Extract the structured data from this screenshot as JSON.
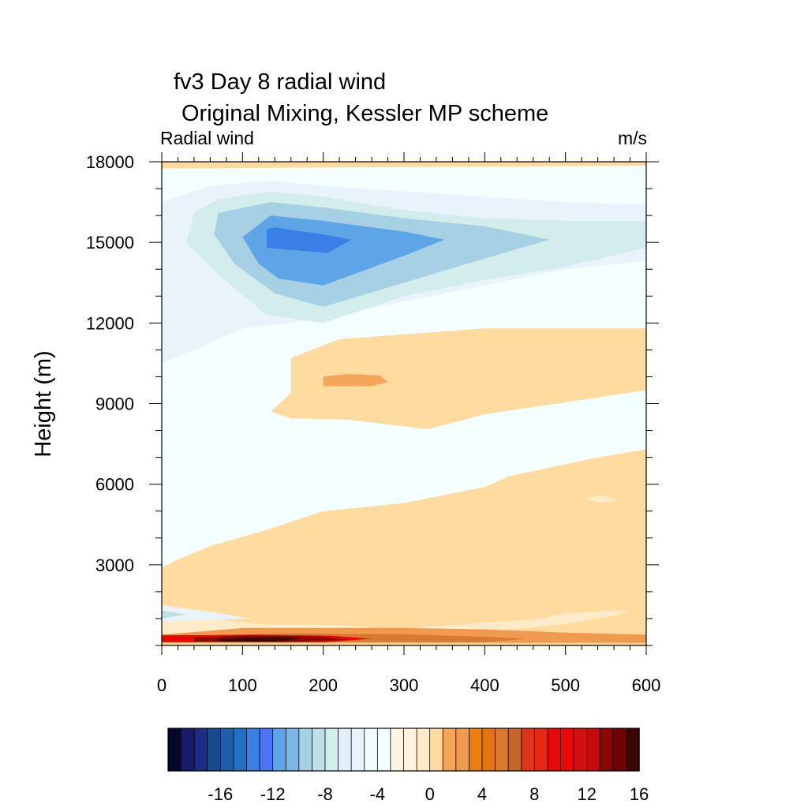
{
  "chart_data": {
    "type": "heatmap",
    "title": "fv3 Day 8 radial wind",
    "subtitle": "Original Mixing,  Kessler MP scheme",
    "left_label": "Radial wind",
    "right_label": "m/s",
    "ylabel": "Height (m)",
    "xlabel": "",
    "xlim": [
      0,
      600
    ],
    "ylim": [
      0,
      18000
    ],
    "x_ticks": [
      0,
      100,
      200,
      300,
      400,
      500,
      600
    ],
    "y_ticks": [
      3000,
      6000,
      9000,
      12000,
      15000,
      18000
    ],
    "colorbar": {
      "ticks": [
        -16,
        -12,
        -8,
        -4,
        0,
        4,
        8,
        12,
        16
      ],
      "level_min": -20,
      "level_step": 1,
      "colors": [
        "#07072b",
        "#1a1a6b",
        "#1c2b86",
        "#164a8e",
        "#1f5ea8",
        "#2371c6",
        "#3a7fe6",
        "#4b75f2",
        "#5ea5e8",
        "#7ab6e6",
        "#a6d0e4",
        "#bfdfe8",
        "#d3ecec",
        "#e2eef8",
        "#e9f3fb",
        "#eefcfc",
        "#f4ffff",
        "#fef4e6",
        "#fff3dc",
        "#ffebc8",
        "#ffdba0",
        "#f5a55a",
        "#f09a50",
        "#ea7e10",
        "#e2760c",
        "#d87a30",
        "#c86528",
        "#e03418",
        "#e32a10",
        "#e80808",
        "#ec0707",
        "#d40f10",
        "#c40c0c",
        "#8c0606",
        "#700404",
        "#3b0606"
      ]
    },
    "regions": [
      {
        "level": 0.5,
        "polygon": [
          [
            0,
            0
          ],
          [
            600,
            0
          ],
          [
            600,
            7300
          ],
          [
            540,
            7000
          ],
          [
            430,
            6300
          ],
          [
            400,
            5900
          ],
          [
            300,
            5300
          ],
          [
            200,
            5000
          ],
          [
            130,
            4300
          ],
          [
            60,
            3700
          ],
          [
            20,
            3200
          ],
          [
            0,
            2900
          ]
        ]
      },
      {
        "level": 0.5,
        "polygon": [
          [
            0,
            17750
          ],
          [
            600,
            17850
          ],
          [
            600,
            18000
          ],
          [
            0,
            18000
          ]
        ]
      },
      {
        "level": 0.5,
        "polygon": [
          [
            135,
            8700
          ],
          [
            160,
            8450
          ],
          [
            230,
            8400
          ],
          [
            330,
            8050
          ],
          [
            400,
            8600
          ],
          [
            600,
            9500
          ],
          [
            600,
            11800
          ],
          [
            400,
            11800
          ],
          [
            220,
            11400
          ],
          [
            160,
            10700
          ],
          [
            160,
            9400
          ]
        ]
      },
      {
        "level": -0.5,
        "polygon": [
          [
            525,
            5450
          ],
          [
            545,
            5600
          ],
          [
            565,
            5400
          ],
          [
            545,
            5300
          ]
        ]
      },
      {
        "level": -0.5,
        "polygon": [
          [
            0,
            1200
          ],
          [
            60,
            1000
          ],
          [
            120,
            800
          ],
          [
            230,
            750
          ],
          [
            280,
            600
          ],
          [
            380,
            800
          ],
          [
            470,
            1000
          ],
          [
            500,
            1200
          ],
          [
            560,
            1300
          ],
          [
            580,
            1300
          ],
          [
            560,
            1100
          ],
          [
            500,
            800
          ],
          [
            400,
            500
          ],
          [
            0,
            450
          ]
        ]
      },
      {
        "level": 1.5,
        "polygon": [
          [
            200,
            10000
          ],
          [
            200,
            9650
          ],
          [
            260,
            9650
          ],
          [
            280,
            9800
          ],
          [
            270,
            10050
          ],
          [
            230,
            10100
          ]
        ]
      },
      {
        "level": -3.5,
        "polygon": [
          [
            0,
            6800
          ],
          [
            20,
            7000
          ],
          [
            40,
            7500
          ],
          [
            60,
            8500
          ],
          [
            100,
            10000
          ],
          [
            150,
            11400
          ],
          [
            200,
            12100
          ],
          [
            300,
            12500
          ],
          [
            400,
            12800
          ],
          [
            500,
            13100
          ],
          [
            600,
            13500
          ],
          [
            600,
            16900
          ],
          [
            500,
            16700
          ],
          [
            400,
            17000
          ],
          [
            300,
            17400
          ],
          [
            200,
            17600
          ],
          [
            130,
            17700
          ],
          [
            0,
            17600
          ]
        ]
      },
      {
        "level": -5.5,
        "polygon": [
          [
            0,
            10500
          ],
          [
            40,
            11000
          ],
          [
            100,
            11800
          ],
          [
            160,
            12000
          ],
          [
            200,
            12200
          ],
          [
            300,
            12800
          ],
          [
            400,
            13400
          ],
          [
            500,
            14000
          ],
          [
            600,
            14300
          ],
          [
            600,
            16400
          ],
          [
            500,
            16500
          ],
          [
            400,
            16700
          ],
          [
            300,
            16900
          ],
          [
            200,
            17100
          ],
          [
            135,
            17300
          ],
          [
            60,
            17100
          ],
          [
            0,
            16500
          ]
        ]
      },
      {
        "level": -7.5,
        "polygon": [
          [
            30,
            15000
          ],
          [
            70,
            13800
          ],
          [
            130,
            12300
          ],
          [
            200,
            12000
          ],
          [
            300,
            13000
          ],
          [
            400,
            13600
          ],
          [
            500,
            14100
          ],
          [
            600,
            14800
          ],
          [
            600,
            15800
          ],
          [
            500,
            15800
          ],
          [
            400,
            15900
          ],
          [
            300,
            16200
          ],
          [
            200,
            16700
          ],
          [
            135,
            16900
          ],
          [
            70,
            16600
          ],
          [
            40,
            16100
          ]
        ]
      },
      {
        "level": -9.5,
        "polygon": [
          [
            65,
            15300
          ],
          [
            90,
            14200
          ],
          [
            140,
            13100
          ],
          [
            200,
            12600
          ],
          [
            300,
            13500
          ],
          [
            400,
            14400
          ],
          [
            480,
            15100
          ],
          [
            400,
            15600
          ],
          [
            300,
            15900
          ],
          [
            200,
            16300
          ],
          [
            135,
            16500
          ],
          [
            70,
            16100
          ]
        ]
      },
      {
        "level": -11.5,
        "polygon": [
          [
            100,
            15200
          ],
          [
            120,
            14200
          ],
          [
            145,
            13650
          ],
          [
            200,
            13400
          ],
          [
            300,
            14500
          ],
          [
            350,
            15100
          ],
          [
            300,
            15400
          ],
          [
            200,
            15800
          ],
          [
            135,
            16000
          ]
        ]
      },
      {
        "level": -13.5,
        "polygon": [
          [
            130,
            15500
          ],
          [
            130,
            14800
          ],
          [
            205,
            14600
          ],
          [
            235,
            15100
          ],
          [
            200,
            15300
          ],
          [
            140,
            15550
          ]
        ]
      },
      {
        "level": -5.5,
        "polygon": [
          [
            0,
            1500
          ],
          [
            60,
            1250
          ],
          [
            110,
            1000
          ],
          [
            0,
            900
          ]
        ]
      },
      {
        "level": -8.5,
        "polygon": [
          [
            0,
            1300
          ],
          [
            30,
            1150
          ],
          [
            0,
            1000
          ]
        ]
      },
      {
        "level": 2.5,
        "polygon": [
          [
            0,
            400
          ],
          [
            100,
            650
          ],
          [
            300,
            650
          ],
          [
            400,
            600
          ],
          [
            500,
            480
          ],
          [
            600,
            400
          ],
          [
            600,
            100
          ],
          [
            0,
            100
          ]
        ]
      },
      {
        "level": 5.5,
        "polygon": [
          [
            0,
            320
          ],
          [
            150,
            450
          ],
          [
            300,
            420
          ],
          [
            400,
            320
          ],
          [
            450,
            250
          ],
          [
            400,
            120
          ],
          [
            0,
            120
          ]
        ]
      },
      {
        "level": 10.5,
        "polygon": [
          [
            0,
            380
          ],
          [
            120,
            400
          ],
          [
            210,
            360
          ],
          [
            260,
            250
          ],
          [
            200,
            120
          ],
          [
            0,
            120
          ]
        ]
      },
      {
        "level": 13.5,
        "polygon": [
          [
            40,
            300
          ],
          [
            110,
            380
          ],
          [
            200,
            330
          ],
          [
            230,
            200
          ],
          [
            150,
            130
          ],
          [
            40,
            150
          ]
        ]
      },
      {
        "level": 17.5,
        "polygon": [
          [
            70,
            250
          ],
          [
            140,
            320
          ],
          [
            175,
            260
          ],
          [
            140,
            150
          ],
          [
            70,
            160
          ]
        ]
      }
    ]
  }
}
